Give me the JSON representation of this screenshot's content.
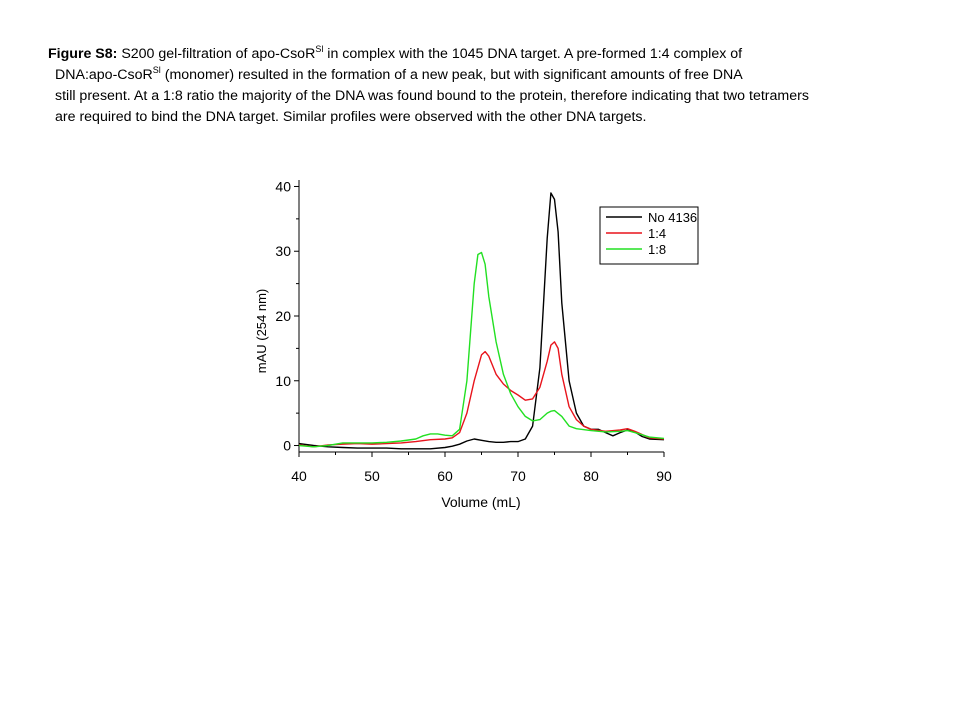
{
  "caption": {
    "label": "Figure S8:",
    "line1_a": " S200 gel-filtration of apo-CsoR",
    "line1_sup": "Sl",
    "line1_b": " in complex with the 1045 DNA target.  A  pre-formed 1:4 complex of",
    "line2_a": "DNA:apo-CsoR",
    "line2_sup": "Sl",
    "line2_b": " (monomer) resulted in the formation of a new peak, but with significant amounts of free DNA",
    "line3": "still present. At a 1:8 ratio the majority of the DNA was found bound to the protein, therefore indicating that two tetramers",
    "line4": "are required to bind the DNA target. Similar profiles were observed with the other DNA targets."
  },
  "chart_data": {
    "type": "line",
    "title": "",
    "xlabel": "Volume (mL)",
    "ylabel": "mAU (254 nm)",
    "xlim": [
      40,
      90
    ],
    "ylim": [
      -1,
      41
    ],
    "xticks": [
      40,
      50,
      60,
      70,
      80,
      90
    ],
    "yticks": [
      0,
      10,
      20,
      30,
      40
    ],
    "grid": false,
    "legend": "top-right",
    "series": [
      {
        "name": "No 4136",
        "color": "#000000",
        "points": [
          [
            40,
            0.3
          ],
          [
            42,
            0
          ],
          [
            44,
            -0.2
          ],
          [
            46,
            -0.3
          ],
          [
            48,
            -0.4
          ],
          [
            50,
            -0.4
          ],
          [
            52,
            -0.4
          ],
          [
            54,
            -0.5
          ],
          [
            56,
            -0.5
          ],
          [
            58,
            -0.5
          ],
          [
            60,
            -0.3
          ],
          [
            61,
            -0.1
          ],
          [
            62,
            0.2
          ],
          [
            63,
            0.7
          ],
          [
            64,
            1
          ],
          [
            65,
            0.8
          ],
          [
            66,
            0.6
          ],
          [
            67,
            0.5
          ],
          [
            68,
            0.5
          ],
          [
            69,
            0.6
          ],
          [
            70,
            0.6
          ],
          [
            71,
            1
          ],
          [
            72,
            3
          ],
          [
            73,
            12
          ],
          [
            74,
            32
          ],
          [
            74.5,
            39
          ],
          [
            75,
            38
          ],
          [
            75.5,
            33
          ],
          [
            76,
            22
          ],
          [
            77,
            10
          ],
          [
            78,
            5
          ],
          [
            79,
            3
          ],
          [
            80,
            2.5
          ],
          [
            81,
            2.5
          ],
          [
            82,
            2
          ],
          [
            83,
            1.5
          ],
          [
            84,
            2
          ],
          [
            85,
            2.4
          ],
          [
            86,
            2.1
          ],
          [
            87,
            1.4
          ],
          [
            88,
            1
          ],
          [
            90,
            0.9
          ]
        ]
      },
      {
        "name": "1:4",
        "color": "#e8141c",
        "points": [
          [
            40,
            0.1
          ],
          [
            42,
            -0.2
          ],
          [
            44,
            0.1
          ],
          [
            46,
            0.2
          ],
          [
            48,
            0.3
          ],
          [
            50,
            0.2
          ],
          [
            52,
            0.3
          ],
          [
            54,
            0.4
          ],
          [
            56,
            0.6
          ],
          [
            58,
            0.9
          ],
          [
            60,
            1
          ],
          [
            61,
            1.2
          ],
          [
            62,
            2
          ],
          [
            63,
            5
          ],
          [
            64,
            10
          ],
          [
            65,
            14
          ],
          [
            65.5,
            14.5
          ],
          [
            66,
            13.8
          ],
          [
            67,
            11
          ],
          [
            68,
            9.5
          ],
          [
            69,
            8.5
          ],
          [
            70,
            7.8
          ],
          [
            71,
            7
          ],
          [
            72,
            7.2
          ],
          [
            73,
            9
          ],
          [
            74,
            13
          ],
          [
            74.5,
            15.5
          ],
          [
            75,
            16
          ],
          [
            75.5,
            15
          ],
          [
            76,
            11
          ],
          [
            77,
            6
          ],
          [
            78,
            4
          ],
          [
            79,
            3
          ],
          [
            80,
            2.5
          ],
          [
            82,
            2.2
          ],
          [
            84,
            2.4
          ],
          [
            85,
            2.6
          ],
          [
            86,
            2.2
          ],
          [
            88,
            1.2
          ],
          [
            90,
            1
          ]
        ]
      },
      {
        "name": "1:8",
        "color": "#22e022",
        "points": [
          [
            40,
            0
          ],
          [
            42,
            -0.2
          ],
          [
            44,
            0
          ],
          [
            46,
            0.4
          ],
          [
            48,
            0.4
          ],
          [
            50,
            0.4
          ],
          [
            52,
            0.5
          ],
          [
            54,
            0.7
          ],
          [
            56,
            1
          ],
          [
            57,
            1.5
          ],
          [
            58,
            1.8
          ],
          [
            59,
            1.8
          ],
          [
            60,
            1.6
          ],
          [
            61,
            1.5
          ],
          [
            62,
            2.5
          ],
          [
            63,
            10
          ],
          [
            64,
            25
          ],
          [
            64.5,
            29.5
          ],
          [
            65,
            29.8
          ],
          [
            65.5,
            28
          ],
          [
            66,
            23
          ],
          [
            67,
            16
          ],
          [
            68,
            11
          ],
          [
            69,
            8
          ],
          [
            70,
            6
          ],
          [
            71,
            4.5
          ],
          [
            72,
            3.8
          ],
          [
            73,
            4
          ],
          [
            74,
            5
          ],
          [
            74.5,
            5.3
          ],
          [
            75,
            5.4
          ],
          [
            76,
            4.5
          ],
          [
            77,
            3
          ],
          [
            78,
            2.6
          ],
          [
            80,
            2.3
          ],
          [
            82,
            2.1
          ],
          [
            84,
            2.2
          ],
          [
            85,
            2.3
          ],
          [
            86,
            2
          ],
          [
            88,
            1.3
          ],
          [
            90,
            1.1
          ]
        ]
      }
    ]
  }
}
